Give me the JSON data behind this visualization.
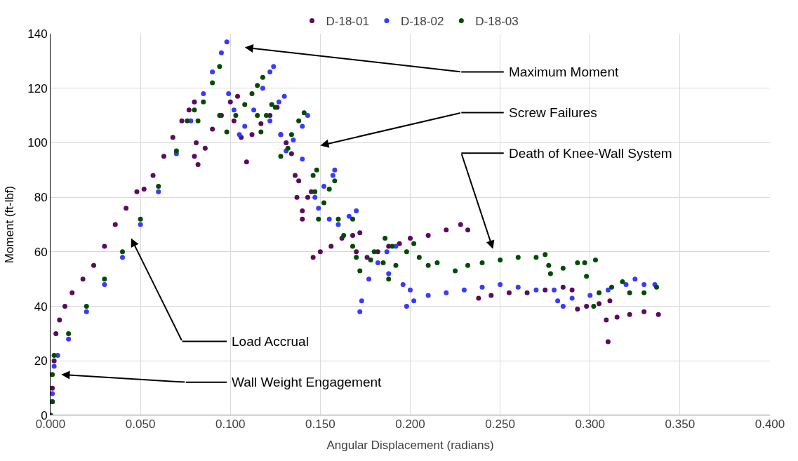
{
  "chart_data": {
    "type": "scatter",
    "xlabel": "Angular Displacement (radians)",
    "ylabel": "Moment (ft-lbf)",
    "xlim": [
      0,
      0.4
    ],
    "ylim": [
      0,
      140
    ],
    "xticks": [
      {
        "value": 0,
        "label": "0.000"
      },
      {
        "value": 0.05,
        "label": "0.050"
      },
      {
        "value": 0.1,
        "label": "0.100"
      },
      {
        "value": 0.15,
        "label": "0.150"
      },
      {
        "value": 0.2,
        "label": "0.200"
      },
      {
        "value": 0.25,
        "label": "0.250"
      },
      {
        "value": 0.3,
        "label": "0.300"
      },
      {
        "value": 0.35,
        "label": "0.350"
      },
      {
        "value": 0.4,
        "label": "0.400"
      }
    ],
    "yticks": [
      0,
      20,
      40,
      60,
      80,
      100,
      120,
      140
    ],
    "grid": true,
    "legend": "top",
    "marker": "circle",
    "series": [
      {
        "name": "D-18-01",
        "color": "#5c0a5c",
        "x": [
          0,
          0.001,
          0.001,
          0.002,
          0.003,
          0.005,
          0.008,
          0.012,
          0.018,
          0.024,
          0.03,
          0.036,
          0.042,
          0.048,
          0.052,
          0.057,
          0.063,
          0.068,
          0.073,
          0.077,
          0.08,
          0.081,
          0.08,
          0.082,
          0.086,
          0.09,
          0.095,
          0.1,
          0.104,
          0.102,
          0.106,
          0.109,
          0.112,
          0.117,
          0.122,
          0.126,
          0.128,
          0.131,
          0.134,
          0.136,
          0.138,
          0.137,
          0.14,
          0.143,
          0.145,
          0.14,
          0.146,
          0.15,
          0.156,
          0.162,
          0.168,
          0.172,
          0.17,
          0.176,
          0.182,
          0.188,
          0.194,
          0.2,
          0.21,
          0.22,
          0.228,
          0.232,
          0.238,
          0.245,
          0.255,
          0.265,
          0.275,
          0.285,
          0.29,
          0.293,
          0.298,
          0.305,
          0.311,
          0.31,
          0.309,
          0.315,
          0.322,
          0.33,
          0.338
        ],
        "values": [
          0,
          5,
          10,
          20,
          30,
          35,
          40,
          45,
          50,
          55,
          62,
          70,
          76,
          82,
          83,
          88,
          95,
          102,
          108,
          112,
          115,
          100,
          95,
          92,
          98,
          105,
          110,
          115,
          117,
          108,
          102,
          93,
          103,
          107,
          110,
          113,
          103,
          100,
          96,
          88,
          86,
          80,
          75,
          80,
          82,
          72,
          58,
          60,
          62,
          65,
          66,
          67,
          60,
          58,
          60,
          62,
          63,
          65,
          66,
          68,
          70,
          68,
          43,
          44,
          45,
          45,
          46,
          47,
          46,
          39,
          40,
          41,
          42,
          27,
          35,
          36,
          37,
          38,
          37
        ]
      },
      {
        "name": "D-18-02",
        "color": "#3a3aff",
        "x": [
          0,
          0.001,
          0.002,
          0.004,
          0.01,
          0.02,
          0.03,
          0.04,
          0.05,
          0.06,
          0.07,
          0.078,
          0.085,
          0.09,
          0.095,
          0.098,
          0.099,
          0.102,
          0.105,
          0.108,
          0.113,
          0.118,
          0.122,
          0.124,
          0.122,
          0.127,
          0.13,
          0.128,
          0.131,
          0.135,
          0.14,
          0.143,
          0.14,
          0.147,
          0.152,
          0.157,
          0.158,
          0.149,
          0.155,
          0.16,
          0.166,
          0.17,
          0.172,
          0.173,
          0.177,
          0.182,
          0.187,
          0.192,
          0.188,
          0.196,
          0.2,
          0.198,
          0.202,
          0.21,
          0.22,
          0.23,
          0.24,
          0.25,
          0.26,
          0.27,
          0.28,
          0.282,
          0.285,
          0.29,
          0.3,
          0.31,
          0.32,
          0.325,
          0.33,
          0.336
        ],
        "values": [
          0,
          8,
          18,
          22,
          28,
          38,
          48,
          58,
          70,
          82,
          96,
          108,
          118,
          126,
          133,
          137,
          118,
          112,
          103,
          106,
          112,
          120,
          126,
          128,
          108,
          115,
          117,
          103,
          97,
          101,
          106,
          110,
          94,
          80,
          84,
          88,
          90,
          76,
          72,
          70,
          73,
          75,
          38,
          42,
          50,
          56,
          60,
          62,
          52,
          48,
          46,
          40,
          42,
          44,
          45,
          46,
          47,
          48,
          47,
          46,
          46,
          42,
          40,
          43,
          44,
          46,
          48,
          50,
          48,
          48
        ]
      },
      {
        "name": "D-18-03",
        "color": "#004d00",
        "x": [
          0,
          0.001,
          0.001,
          0.002,
          0.01,
          0.02,
          0.03,
          0.04,
          0.05,
          0.06,
          0.07,
          0.076,
          0.08,
          0.082,
          0.085,
          0.09,
          0.094,
          0.094,
          0.098,
          0.103,
          0.108,
          0.112,
          0.115,
          0.118,
          0.115,
          0.117,
          0.12,
          0.123,
          0.125,
          0.132,
          0.128,
          0.134,
          0.138,
          0.141,
          0.146,
          0.148,
          0.147,
          0.149,
          0.152,
          0.155,
          0.158,
          0.16,
          0.163,
          0.168,
          0.168,
          0.17,
          0.172,
          0.178,
          0.18,
          0.186,
          0.19,
          0.185,
          0.188,
          0.192,
          0.198,
          0.202,
          0.205,
          0.21,
          0.215,
          0.225,
          0.232,
          0.24,
          0.25,
          0.26,
          0.27,
          0.275,
          0.277,
          0.278,
          0.285,
          0.293,
          0.297,
          0.298,
          0.303,
          0.302,
          0.305,
          0.312,
          0.318,
          0.322,
          0.33,
          0.337
        ],
        "values": [
          0,
          5,
          15,
          22,
          30,
          40,
          50,
          60,
          72,
          84,
          97,
          108,
          112,
          108,
          115,
          122,
          128,
          110,
          104,
          110,
          114,
          118,
          121,
          124,
          110,
          104,
          110,
          114,
          113,
          98,
          95,
          103,
          108,
          111,
          88,
          90,
          82,
          72,
          78,
          83,
          86,
          72,
          66,
          72,
          62,
          58,
          53,
          57,
          60,
          65,
          62,
          56,
          50,
          55,
          60,
          63,
          58,
          55,
          56,
          53,
          55,
          56,
          57,
          58,
          58,
          59,
          55,
          52,
          54,
          56,
          56,
          51,
          57,
          40,
          45,
          47,
          49,
          45,
          45,
          47
        ]
      }
    ],
    "annotations": [
      "Maximum Moment",
      "Screw Failures",
      "Death of Knee-Wall System",
      "Load Accrual",
      "Wall Weight Engagement"
    ]
  }
}
